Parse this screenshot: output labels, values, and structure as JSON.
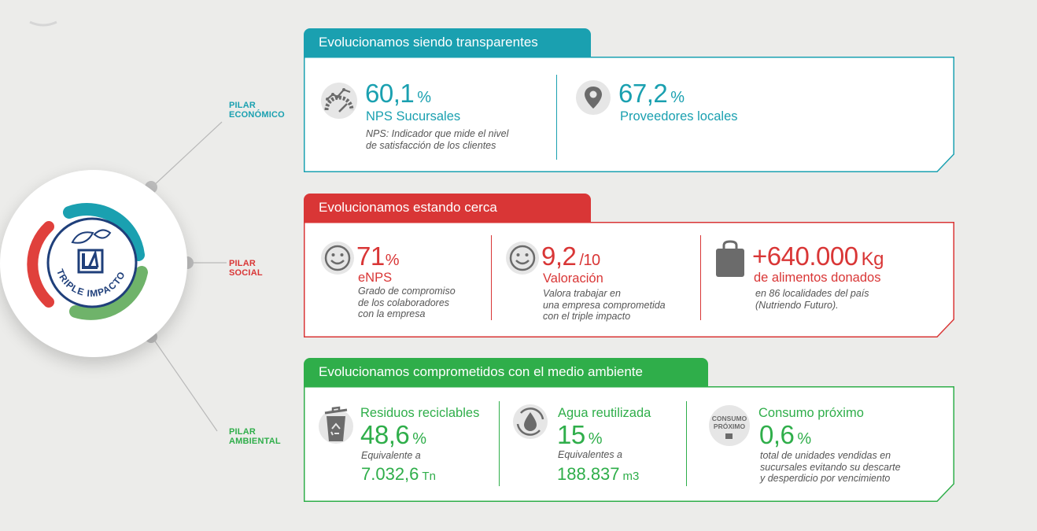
{
  "colors": {
    "teal": "#1aa0b0",
    "red": "#d93636",
    "green": "#2fae4a",
    "grey_line": "#b9b9b9",
    "icon_grey": "#6b6b6b"
  },
  "logo": {
    "name": "triple-impacto-logo",
    "lettering": "TRIPLE IMPACTO"
  },
  "pillars": {
    "economico": "PILAR\nECONÓMICO",
    "social": "PILAR\nSOCIAL",
    "ambiental": "PILAR\nAMBIENTAL"
  },
  "economico": {
    "title": "Evolucionamos siendo transparentes",
    "nps": {
      "icon": "gauge-icon",
      "value": "60,1",
      "unit": "%",
      "label": "NPS Sucursales",
      "note": "NPS: Indicador que mide el nivel\nde satisfacción de los clientes"
    },
    "proveedores": {
      "icon": "location-pin-icon",
      "value": "67,2",
      "unit": "%",
      "label": "Proveedores locales"
    }
  },
  "social": {
    "title": "Evolucionamos estando cerca",
    "enps": {
      "icon": "smiley-icon",
      "value": "71",
      "unit": "%",
      "label": "eNPS",
      "note": "Grado de compromiso\nde los colaboradores\ncon la empresa"
    },
    "valoracion": {
      "icon": "smiley-icon",
      "value": "9,2",
      "unit": "/10",
      "label": "Valoración",
      "note": "Valora trabajar en\nuna empresa comprometida\ncon el triple impacto"
    },
    "alimentos": {
      "icon": "shopping-bag-icon",
      "value": "+640.000",
      "unit": "Kg",
      "label": "de alimentos donados",
      "note": "en 86 localidades del país\n(Nutriendo Futuro)."
    }
  },
  "ambiental": {
    "title": "Evolucionamos comprometidos con el medio ambiente",
    "residuos": {
      "icon": "recycle-bin-icon",
      "label": "Residuos reciclables",
      "value": "48,6",
      "unit": "%",
      "eq_label": "Equivalente a",
      "eq_value": "7.032,6",
      "eq_unit": "Tn"
    },
    "agua": {
      "icon": "water-drop-icon",
      "label": "Agua reutilizada",
      "value": "15",
      "unit": "%",
      "eq_label": "Equivalentes a",
      "eq_value": "188.837",
      "eq_unit": "m3"
    },
    "consumo": {
      "icon": "consumo-proximo-icon",
      "icon_text": "CONSUMO\nPRÓXIMO",
      "label": "Consumo próximo",
      "value": "0,6",
      "unit": "%",
      "note": "total de unidades vendidas en\nsucursales evitando su descarte\ny desperdicio por vencimiento"
    }
  }
}
